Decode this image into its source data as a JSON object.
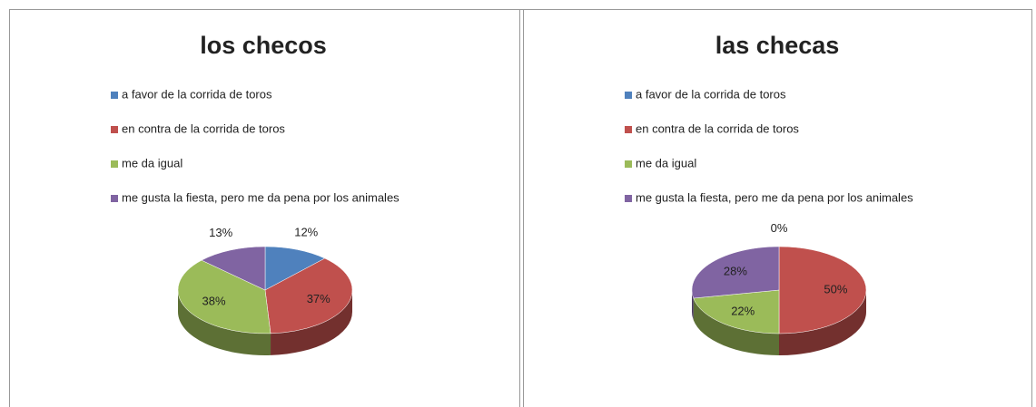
{
  "chart_data": [
    {
      "type": "pie",
      "title": "los checos",
      "categories": [
        "a favor de la corrida de toros",
        "en contra de la corrida de toros",
        "me da igual",
        "me gusta la fiesta, pero me da pena por los animales"
      ],
      "values": [
        12,
        37,
        38,
        13
      ],
      "value_labels": [
        "12%",
        "37%",
        "38%",
        "13%"
      ],
      "colors": [
        "#4f81bd",
        "#c0504d",
        "#9bbb59",
        "#8064a2"
      ]
    },
    {
      "type": "pie",
      "title": "las checas",
      "categories": [
        "a favor de la corrida de toros",
        "en contra de la corrida de toros",
        "me da igual",
        "me gusta la fiesta, pero me da pena por los animales"
      ],
      "values": [
        0,
        50,
        22,
        28
      ],
      "value_labels": [
        "0%",
        "50%",
        "22%",
        "28%"
      ],
      "colors": [
        "#4f81bd",
        "#c0504d",
        "#9bbb59",
        "#8064a2"
      ]
    }
  ]
}
